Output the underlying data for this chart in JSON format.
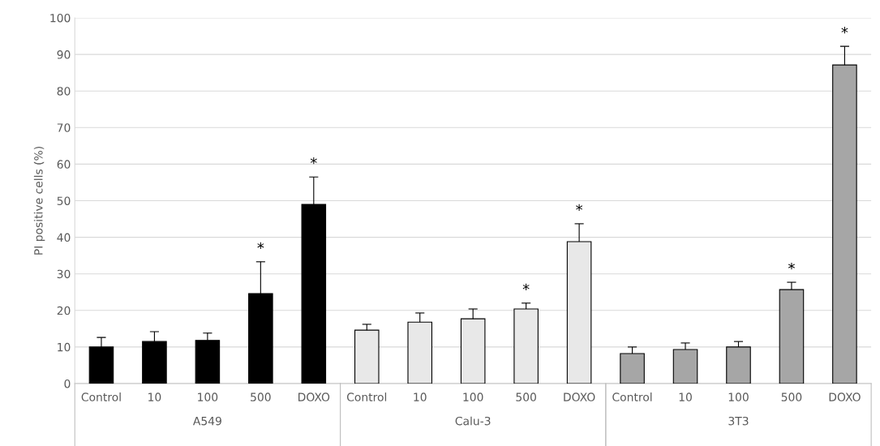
{
  "chart_data": {
    "type": "bar",
    "ylabel": "PI positive cells (%)",
    "categories": [
      "Control",
      "10",
      "100",
      "500",
      "DOXO",
      "Control",
      "10",
      "100",
      "500",
      "DOXO",
      "Control",
      "10",
      "100",
      "500",
      "DOXO"
    ],
    "series": [
      {
        "name": "A549",
        "color": "#000000",
        "values": [
          10,
          11.5,
          11.8,
          24.6,
          49,
          null,
          null,
          null,
          null,
          null,
          null,
          null,
          null,
          null,
          null
        ],
        "errors": [
          [
            10,
            12.6
          ],
          [
            11.5,
            14.2
          ],
          [
            11.8,
            13.8
          ],
          [
            24.6,
            33.3
          ],
          [
            49,
            56.5
          ],
          null,
          null,
          null,
          null,
          null,
          null,
          null,
          null,
          null,
          null
        ],
        "value_labels": [
          null,
          null,
          null,
          "*",
          "*",
          null,
          null,
          null,
          null,
          null,
          null,
          null,
          null,
          null,
          null
        ]
      },
      {
        "name": "Calu-3",
        "color": "#e8e8e8",
        "values": [
          null,
          null,
          null,
          null,
          null,
          14.6,
          16.8,
          17.7,
          20.4,
          38.8,
          null,
          null,
          null,
          null,
          null
        ],
        "errors": [
          null,
          null,
          null,
          null,
          null,
          [
            14.6,
            16.2
          ],
          [
            16.8,
            19.3
          ],
          [
            17.7,
            20.4
          ],
          [
            20.4,
            22
          ],
          [
            38.8,
            43.7
          ],
          null,
          null,
          null,
          null,
          null
        ],
        "value_labels": [
          null,
          null,
          null,
          null,
          null,
          null,
          null,
          null,
          "*",
          "*",
          null,
          null,
          null,
          null,
          null
        ]
      },
      {
        "name": "3T3",
        "color": "#a6a6a6",
        "values": [
          null,
          null,
          null,
          null,
          null,
          null,
          null,
          null,
          null,
          null,
          8.2,
          9.3,
          10,
          25.7,
          87.1
        ],
        "errors": [
          null,
          null,
          null,
          null,
          null,
          null,
          null,
          null,
          null,
          null,
          [
            8.2,
            10
          ],
          [
            9.3,
            11.1
          ],
          [
            10,
            11.5
          ],
          [
            25.7,
            27.7
          ],
          [
            87.1,
            92.2
          ]
        ],
        "value_labels": [
          null,
          null,
          null,
          null,
          null,
          null,
          null,
          null,
          null,
          null,
          null,
          null,
          null,
          "*",
          "*"
        ]
      }
    ],
    "ylim": [
      0,
      100
    ],
    "yticks": [
      0,
      10,
      20,
      30,
      40,
      50,
      60,
      70,
      80,
      90,
      100
    ],
    "grid": "y",
    "legend": false
  }
}
